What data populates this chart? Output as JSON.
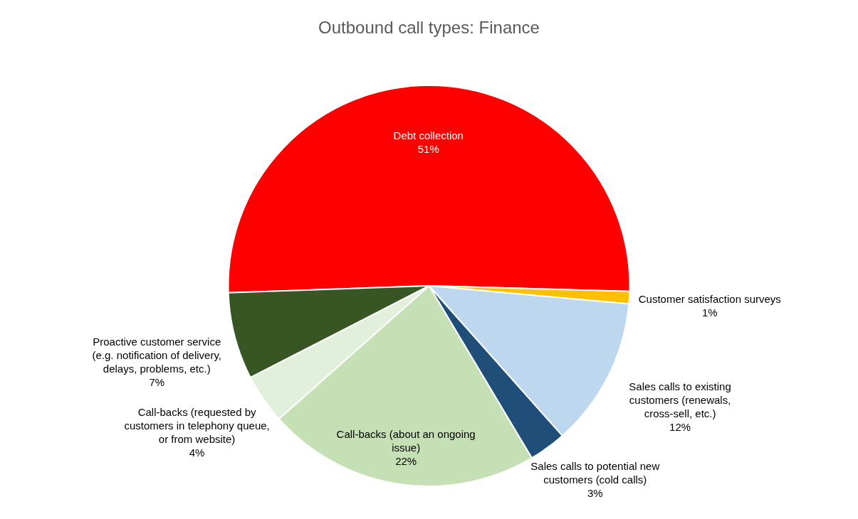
{
  "chart_data": {
    "type": "pie",
    "title": "Outbound call types: Finance",
    "categories": [
      "Debt collection",
      "Customer satisfaction surveys",
      "Sales calls to existing customers (renewals, cross-sell, etc.)",
      "Sales calls to potential new customers (cold calls)",
      "Call-backs (about an ongoing issue)",
      "Call-backs (requested by customers in telephony queue, or from website)",
      "Proactive customer service (e.g. notification of delivery, delays, problems, etc.)"
    ],
    "values": [
      51,
      1,
      12,
      3,
      22,
      4,
      7
    ],
    "value_labels": [
      "51%",
      "1%",
      "12%",
      "3%",
      "22%",
      "4%",
      "7%"
    ],
    "colors": [
      "#ff0000",
      "#ffc000",
      "#bdd7ee",
      "#1f4e79",
      "#c5e0b4",
      "#e2efda",
      "#375623"
    ]
  }
}
